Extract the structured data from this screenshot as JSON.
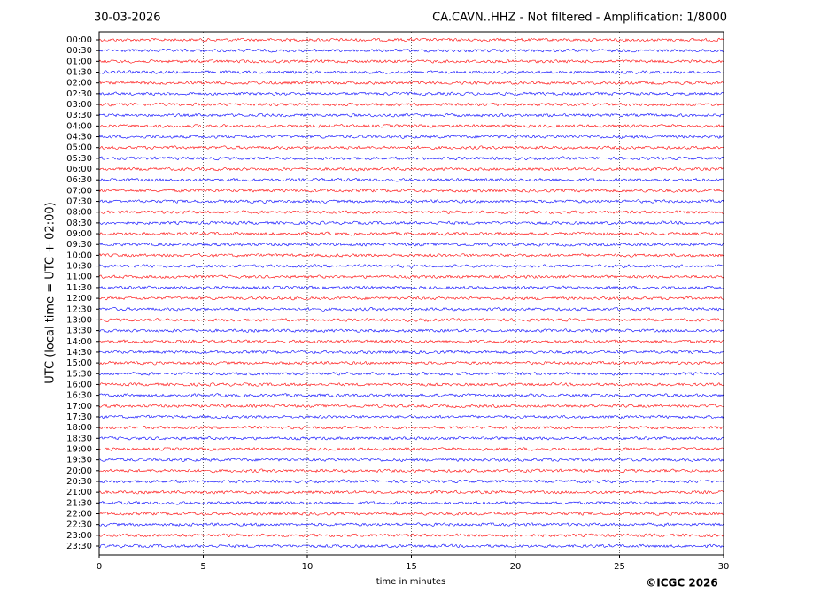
{
  "chart_data": {
    "type": "helicorder",
    "date": "30-03-2026",
    "title": "CA.CAVN..HHZ - Not filtered - Amplification: 1/8000",
    "ylabel": "UTC (local time = UTC + 02:00)",
    "xlabel": "time in minutes",
    "copyright": "©ICGC 2026",
    "categories": [
      "00:00",
      "00:30",
      "01:00",
      "01:30",
      "02:00",
      "02:30",
      "03:00",
      "03:30",
      "04:00",
      "04:30",
      "05:00",
      "05:30",
      "06:00",
      "06:30",
      "07:00",
      "07:30",
      "08:00",
      "08:30",
      "09:00",
      "09:30",
      "10:00",
      "10:30",
      "11:00",
      "11:30",
      "12:00",
      "12:30",
      "13:00",
      "13:30",
      "14:00",
      "14:30",
      "15:00",
      "15:30",
      "16:00",
      "16:30",
      "17:00",
      "17:30",
      "18:00",
      "18:30",
      "19:00",
      "19:30",
      "20:00",
      "20:30",
      "21:00",
      "21:30",
      "22:00",
      "22:30",
      "23:00",
      "23:30"
    ],
    "colors": [
      "#ff0000",
      "#0000ff"
    ],
    "xlim": [
      0,
      30
    ],
    "xticks": [
      0,
      5,
      10,
      15,
      20,
      25,
      30
    ],
    "grid": true
  }
}
